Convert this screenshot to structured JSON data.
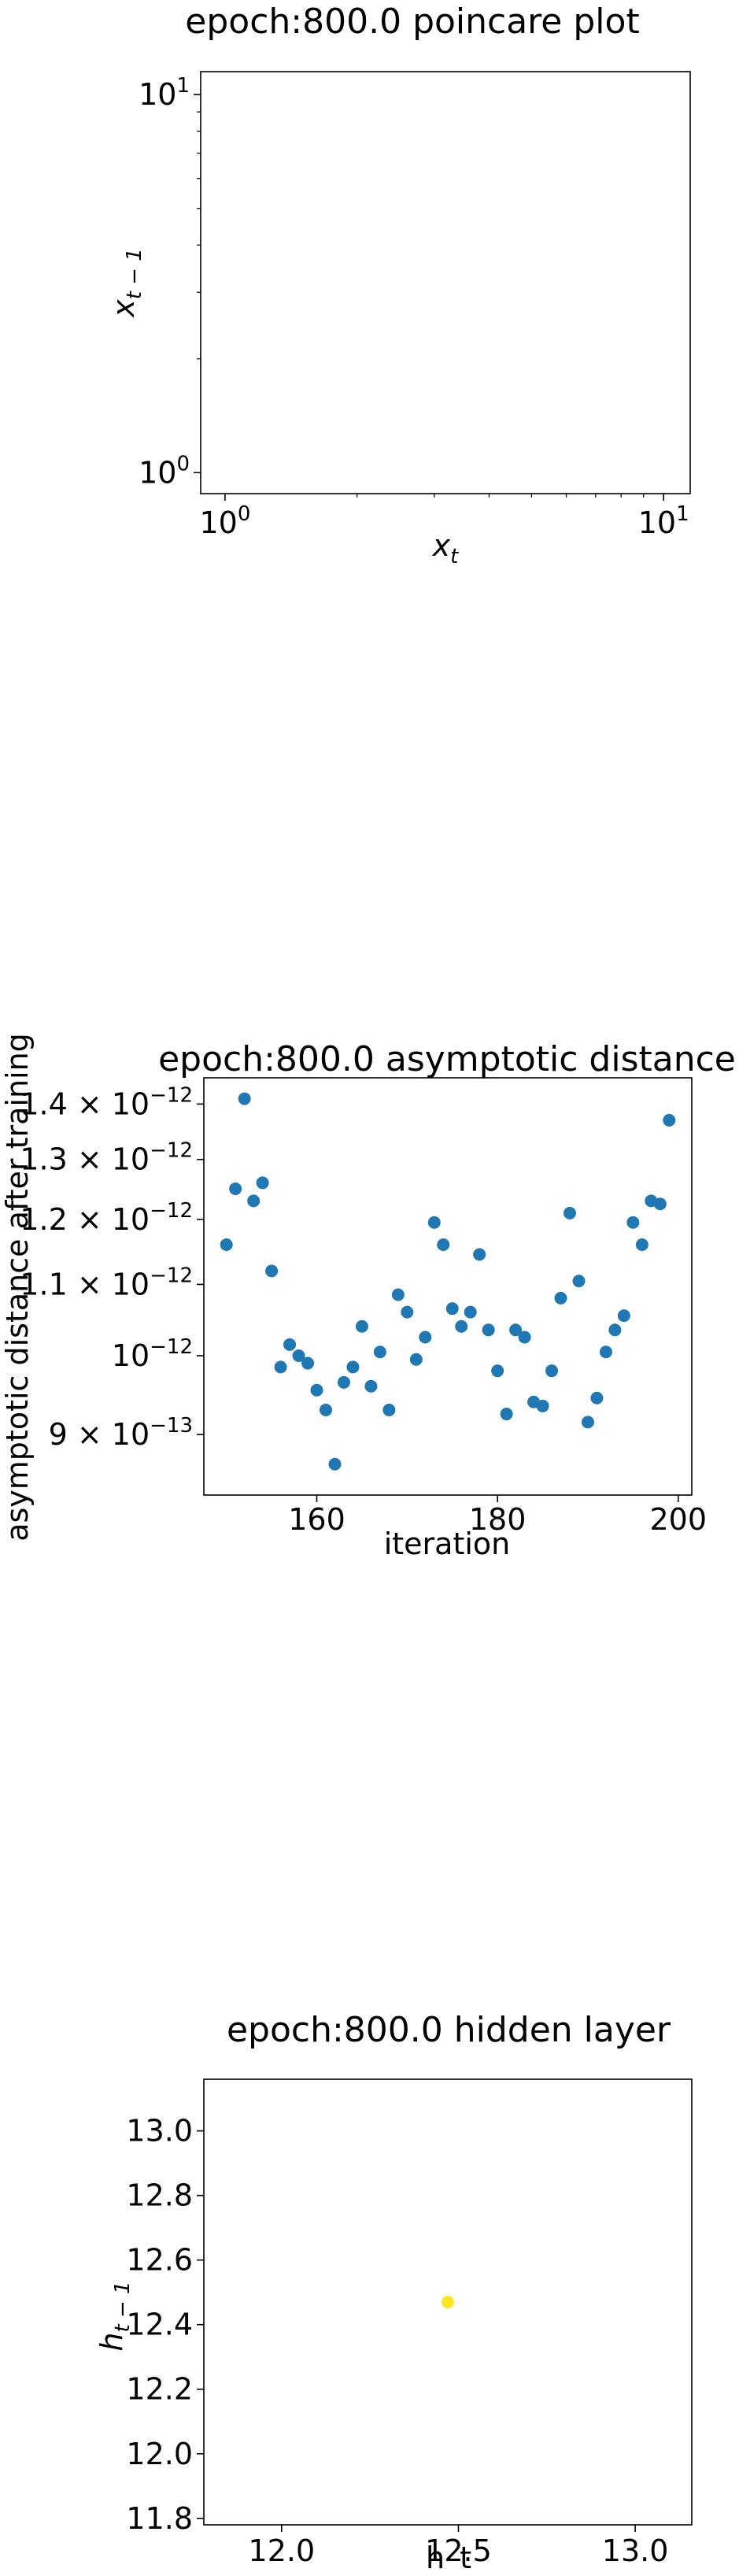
{
  "colors": {
    "scatter_blue": "#1f77b4",
    "hidden_yellow": "#fde725",
    "axis": "#000000",
    "background": "#ffffff"
  },
  "chart_data": [
    {
      "type": "scatter",
      "title": "epoch:800.0 poincare plot",
      "xlabel": "x_t",
      "ylabel": "x_{t-1}",
      "xscale": "log",
      "yscale": "log",
      "xlim": [
        0.88,
        11.5
      ],
      "ylim": [
        0.88,
        11.5
      ],
      "xticks": [
        {
          "value": 1,
          "base": "10",
          "exp": "0"
        },
        {
          "value": 10,
          "base": "10",
          "exp": "1"
        }
      ],
      "yticks": [
        {
          "value": 1,
          "base": "10",
          "exp": "0"
        },
        {
          "value": 10,
          "base": "10",
          "exp": "1"
        }
      ],
      "points": []
    },
    {
      "type": "scatter",
      "title": "epoch:800.0 asymptotic distance",
      "xlabel": "iteration",
      "ylabel": "asymptotic distance after training",
      "yscale": "log",
      "xlim": [
        147.5,
        201.5
      ],
      "ylim": [
        8.3e-13,
        1.45e-12
      ],
      "xticks": [
        {
          "value": 160,
          "label": "160"
        },
        {
          "value": 180,
          "label": "180"
        },
        {
          "value": 200,
          "label": "200"
        }
      ],
      "yticks": [
        {
          "value": 9e-13,
          "mant": "9",
          "exp": "−13"
        },
        {
          "value": 1e-12,
          "mant": "",
          "exp": "−12"
        },
        {
          "value": 1.1e-12,
          "mant": "1.1",
          "exp": "−12"
        },
        {
          "value": 1.2e-12,
          "mant": "1.2",
          "exp": "−12"
        },
        {
          "value": 1.3e-12,
          "mant": "1.3",
          "exp": "−12"
        },
        {
          "value": 1.4e-12,
          "mant": "1.4",
          "exp": "−12"
        }
      ],
      "x": [
        150,
        151,
        152,
        153,
        154,
        155,
        156,
        157,
        158,
        159,
        160,
        161,
        162,
        163,
        164,
        165,
        166,
        167,
        168,
        169,
        170,
        171,
        172,
        173,
        174,
        175,
        176,
        177,
        178,
        179,
        180,
        181,
        182,
        183,
        184,
        185,
        186,
        187,
        188,
        189,
        190,
        191,
        192,
        193,
        194,
        195,
        196,
        197,
        198,
        199
      ],
      "y": [
        1.16e-12,
        1.25e-12,
        1.41e-12,
        1.23e-12,
        1.26e-12,
        1.12e-12,
        9.85e-13,
        1.015e-12,
        1e-12,
        9.9e-13,
        9.55e-13,
        9.3e-13,
        8.65e-13,
        9.65e-13,
        9.85e-13,
        1.04e-12,
        9.6e-13,
        1.005e-12,
        9.3e-13,
        1.085e-12,
        1.06e-12,
        9.95e-13,
        1.025e-12,
        1.195e-12,
        1.16e-12,
        1.065e-12,
        1.04e-12,
        1.06e-12,
        1.145e-12,
        1.035e-12,
        9.8e-13,
        9.25e-13,
        1.035e-12,
        1.025e-12,
        9.4e-13,
        9.35e-13,
        9.8e-13,
        1.08e-12,
        1.21e-12,
        1.105e-12,
        9.15e-13,
        9.45e-13,
        1.005e-12,
        1.035e-12,
        1.055e-12,
        1.195e-12,
        1.16e-12,
        1.23e-12,
        1.225e-12,
        1.37e-12
      ]
    },
    {
      "type": "scatter",
      "title": "epoch:800.0 hidden layer",
      "xlabel": "h_t",
      "ylabel": "h_{t-1}",
      "xlim": [
        11.78,
        13.16
      ],
      "ylim": [
        11.78,
        13.16
      ],
      "xticks": [
        {
          "value": 12.0,
          "label": "12.0"
        },
        {
          "value": 12.5,
          "label": "12.5"
        },
        {
          "value": 13.0,
          "label": "13.0"
        }
      ],
      "yticks": [
        {
          "value": 11.8,
          "label": "11.8"
        },
        {
          "value": 12.0,
          "label": "12.0"
        },
        {
          "value": 12.2,
          "label": "12.2"
        },
        {
          "value": 12.4,
          "label": "12.4"
        },
        {
          "value": 12.6,
          "label": "12.6"
        },
        {
          "value": 12.8,
          "label": "12.8"
        },
        {
          "value": 13.0,
          "label": "13.0"
        }
      ],
      "x": [
        12.47
      ],
      "y": [
        12.47
      ]
    }
  ]
}
